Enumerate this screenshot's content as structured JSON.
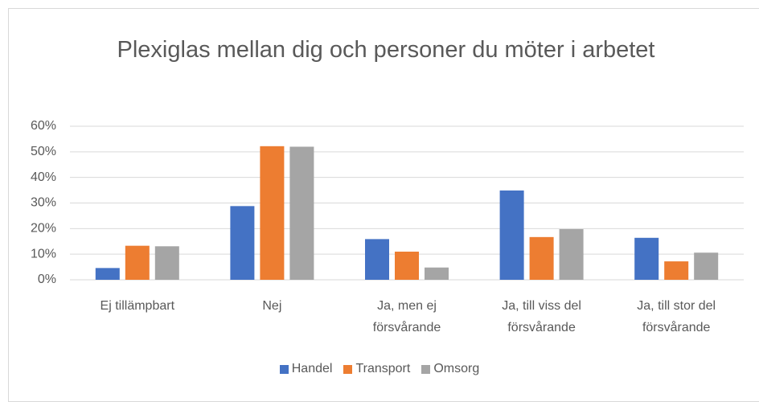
{
  "chart_data": {
    "type": "bar",
    "title": "Plexiglas mellan dig och personer du möter i arbetet",
    "categories": [
      "Ej tillämpbart",
      "Nej",
      "Ja, men ej försvårande",
      "Ja, till viss del försvårande",
      "Ja, till stor del försvårande"
    ],
    "series": [
      {
        "name": "Handel",
        "color": "#4472c4",
        "values": [
          4.6,
          28.8,
          15.9,
          34.9,
          16.4
        ]
      },
      {
        "name": "Transport",
        "color": "#ed7d31",
        "values": [
          13.3,
          52.2,
          11.0,
          16.7,
          7.2
        ]
      },
      {
        "name": "Omsorg",
        "color": "#a5a5a5",
        "values": [
          13.1,
          52.0,
          4.8,
          19.8,
          10.6
        ]
      }
    ],
    "ylim": [
      0,
      60
    ],
    "yticks": [
      {
        "value": 0,
        "label": "0%"
      },
      {
        "value": 10,
        "label": "10%"
      },
      {
        "value": 20,
        "label": "20%"
      },
      {
        "value": 30,
        "label": "30%"
      },
      {
        "value": 40,
        "label": "40%"
      },
      {
        "value": 50,
        "label": "50%"
      },
      {
        "value": 60,
        "label": "60%"
      }
    ],
    "grid": true,
    "legend": "bottom"
  }
}
